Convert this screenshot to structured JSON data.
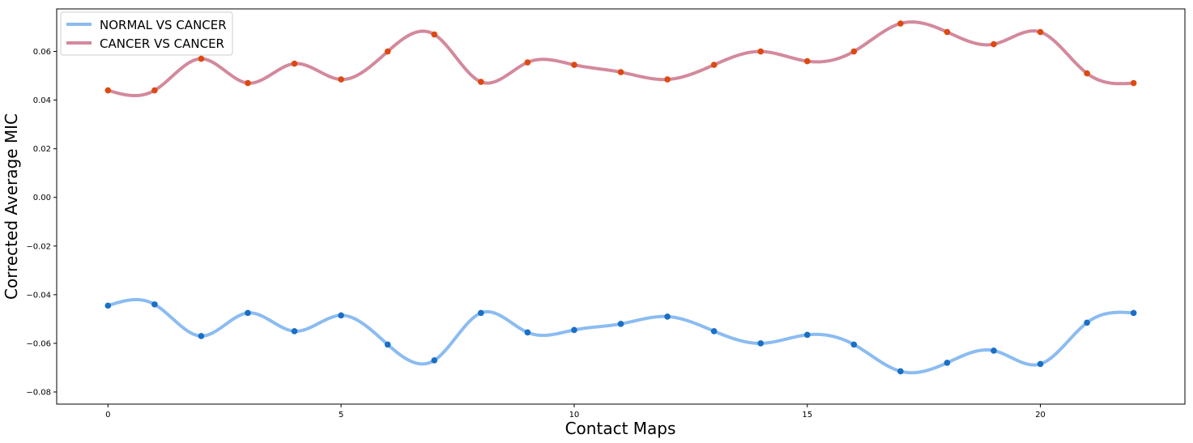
{
  "chart_data": {
    "type": "line",
    "title": "",
    "xlabel": "Contact Maps",
    "ylabel": "Corrected Average MIC",
    "xlim": [
      -1.1,
      23.1
    ],
    "ylim": [
      -0.085,
      0.0775
    ],
    "x_ticks": [
      0,
      5,
      10,
      15,
      20
    ],
    "y_ticks": [
      -0.08,
      -0.06,
      -0.04,
      -0.02,
      0.0,
      0.02,
      0.04,
      0.06
    ],
    "y_tick_labels": [
      "−0.08",
      "−0.06",
      "−0.04",
      "−0.02",
      "0.00",
      "0.02",
      "0.04",
      "0.06"
    ],
    "grid": false,
    "legend_position": "top-left",
    "x": [
      0,
      1,
      2,
      3,
      4,
      5,
      6,
      7,
      8,
      9,
      10,
      11,
      12,
      13,
      14,
      15,
      16,
      17,
      18,
      19,
      20,
      21,
      22
    ],
    "series": [
      {
        "name": "NORMAL VS CANCER",
        "line_color": "#8bbcf1",
        "marker_color": "#1a6fc6",
        "values": [
          -0.0445,
          -0.044,
          -0.057,
          -0.0475,
          -0.055,
          -0.0485,
          -0.0605,
          -0.067,
          -0.0475,
          -0.0555,
          -0.0545,
          -0.052,
          -0.049,
          -0.055,
          -0.06,
          -0.0565,
          -0.0605,
          -0.0715,
          -0.068,
          -0.063,
          -0.0685,
          -0.0515,
          -0.0475
        ]
      },
      {
        "name": "CANCER VS CANCER",
        "line_color": "#d3899c",
        "marker_color": "#dd4a11",
        "values": [
          0.044,
          0.044,
          0.057,
          0.047,
          0.055,
          0.0485,
          0.06,
          0.067,
          0.0475,
          0.0555,
          0.0545,
          0.0515,
          0.0485,
          0.0545,
          0.06,
          0.056,
          0.06,
          0.0715,
          0.068,
          0.063,
          0.068,
          0.051,
          0.047
        ]
      }
    ]
  }
}
